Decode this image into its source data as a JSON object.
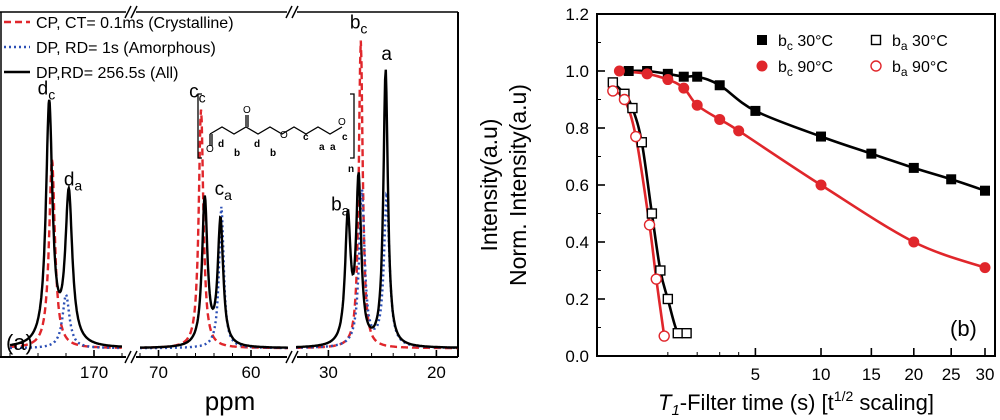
{
  "colors": {
    "black": "#000000",
    "red": "#e0262b",
    "blue": "#2b4fb5"
  },
  "chart_data": [
    {
      "type": "line",
      "panel_label": "(a)",
      "xlabel": "ppm",
      "ylabel": "Intensity(a.u)",
      "x_reversed": true,
      "x_broken": true,
      "x_segments": [
        [
          176,
          168
        ],
        [
          72,
          56
        ],
        [
          33,
          18
        ]
      ],
      "x_ticks": [
        170,
        70,
        60,
        30,
        20
      ],
      "legend_position": "top-left",
      "series": [
        {
          "name": "CP, CT= 0.1ms (Crystalline)",
          "color": "#e0262b",
          "style": "dashed",
          "peaks": [
            [
              173.0,
              0.6,
              0.25
            ],
            [
              65.4,
              0.76,
              0.3
            ],
            [
              27.0,
              0.98,
              0.22
            ]
          ]
        },
        {
          "name": "DP, RD= 1s (Amorphous)",
          "color": "#2b4fb5",
          "style": "dotted",
          "peaks": [
            [
              172.0,
              0.17,
              0.3
            ],
            [
              63.2,
              0.45,
              0.3
            ],
            [
              26.9,
              0.5,
              0.3
            ],
            [
              24.6,
              0.48,
              0.3
            ]
          ]
        },
        {
          "name": "DP,RD= 256.5s (All)",
          "color": "#000000",
          "style": "solid",
          "peaks": [
            [
              173.2,
              0.77,
              0.28
            ],
            [
              171.8,
              0.48,
              0.3
            ],
            [
              65.0,
              0.47,
              0.35
            ],
            [
              63.3,
              0.4,
              0.35
            ],
            [
              28.2,
              0.4,
              0.3
            ],
            [
              27.2,
              0.52,
              0.28
            ],
            [
              24.7,
              0.88,
              0.25
            ]
          ]
        }
      ],
      "peak_labels": [
        {
          "main": "d",
          "sub": "c",
          "ppm": 173.4,
          "level": 0.82
        },
        {
          "main": "d",
          "sub": "a",
          "ppm": 171.5,
          "level": 0.53
        },
        {
          "main": "c",
          "sub": "c",
          "ppm": 65.8,
          "level": 0.81
        },
        {
          "main": "c",
          "sub": "a",
          "ppm": 63.0,
          "level": 0.5
        },
        {
          "main": "b",
          "sub": "a",
          "ppm": 28.9,
          "level": 0.45
        },
        {
          "main": "b",
          "sub": "c",
          "ppm": 27.2,
          "level": 1.03
        },
        {
          "main": "a",
          "sub": "",
          "ppm": 24.6,
          "level": 0.93
        }
      ],
      "structure_labels": [
        "d",
        "d",
        "b",
        "b",
        "c",
        "a",
        "a",
        "c",
        "n"
      ]
    },
    {
      "type": "scatter",
      "panel_label": "(b)",
      "xlabel_italic": "T",
      "xlabel_sub": "1",
      "xlabel_rest": "-Filter time (s) [t",
      "xlabel_sup": "1/2",
      "xlabel_tail": " scaling]",
      "ylabel": "Norm. Intensity(a.u)",
      "x_scale": "sqrt",
      "xlim": [
        0,
        30
      ],
      "ylim": [
        0,
        1.2
      ],
      "x_ticks": [
        5,
        10,
        15,
        20,
        25,
        30
      ],
      "y_ticks": [
        0.0,
        0.2,
        0.4,
        0.6,
        0.8,
        1.0,
        1.2
      ],
      "legend_position": "top-right",
      "series": [
        {
          "name_main": "b",
          "name_sub": "c",
          "name_rest": " 30°C",
          "marker": "filled-square",
          "color": "#000000",
          "x": [
            0.2,
            0.5,
            1.0,
            1.5,
            2.0,
            3.0,
            5.0,
            10.0,
            15.0,
            20.0,
            25.0,
            30.0
          ],
          "y": [
            1.0,
            1.0,
            0.99,
            0.98,
            0.98,
            0.95,
            0.86,
            0.77,
            0.71,
            0.66,
            0.62,
            0.58
          ]
        },
        {
          "name_main": "b",
          "name_sub": "a",
          "name_rest": " 30°C",
          "marker": "open-square",
          "color": "#000000",
          "x": [
            0.05,
            0.15,
            0.25,
            0.4,
            0.6,
            0.8,
            1.0,
            1.3,
            1.6
          ],
          "y": [
            0.96,
            0.92,
            0.87,
            0.75,
            0.5,
            0.3,
            0.2,
            0.08,
            0.08
          ]
        },
        {
          "name_main": "b",
          "name_sub": "c",
          "name_rest": " 90°C",
          "marker": "filled-circle",
          "color": "#e0262b",
          "x": [
            0.1,
            0.5,
            1.0,
            1.5,
            2.0,
            3.0,
            4.0,
            10.0,
            20.0,
            30.0
          ],
          "y": [
            1.0,
            0.99,
            0.97,
            0.94,
            0.88,
            0.83,
            0.79,
            0.6,
            0.4,
            0.31
          ]
        },
        {
          "name_main": "b",
          "name_sub": "a",
          "name_rest": " 90°C",
          "marker": "open-circle",
          "color": "#e0262b",
          "x": [
            0.05,
            0.15,
            0.3,
            0.55,
            0.7,
            0.9
          ],
          "y": [
            0.93,
            0.9,
            0.77,
            0.46,
            0.27,
            0.07
          ]
        }
      ]
    }
  ]
}
